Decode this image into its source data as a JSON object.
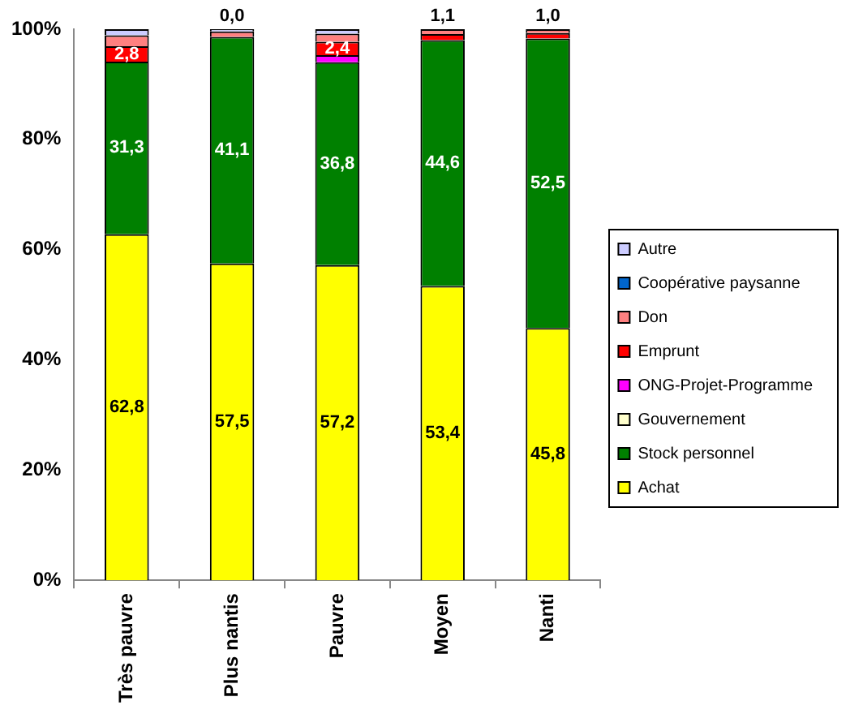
{
  "chart_data": {
    "type": "bar",
    "stacked": true,
    "categories": [
      "Très pauvre",
      "Plus nantis",
      "Pauvre",
      "Moyen",
      "Nanti"
    ],
    "series": [
      {
        "name": "Achat",
        "color": "#ffff00",
        "values": [
          62.8,
          57.5,
          57.2,
          53.4,
          45.8
        ],
        "value_labels": [
          "62,8",
          "57,5",
          "57,2",
          "53,4",
          "45,8"
        ]
      },
      {
        "name": "Stock personnel",
        "color": "#008000",
        "values": [
          31.3,
          41.1,
          36.8,
          44.6,
          52.5
        ],
        "value_labels": [
          "31,3",
          "41,1",
          "36,8",
          "44,6",
          "52,5"
        ]
      },
      {
        "name": "Gouvernement",
        "color": "#ffffcc",
        "values": [
          0,
          0,
          0,
          0,
          0
        ]
      },
      {
        "name": "ONG-Projet-Programme",
        "color": "#ff00ff",
        "values": [
          0,
          0,
          1.3,
          0,
          0
        ]
      },
      {
        "name": "Emprunt",
        "color": "#ff0000",
        "values": [
          2.8,
          0,
          2.4,
          1.1,
          1.0
        ],
        "value_labels": [
          "2,8",
          "0,0",
          "2,4",
          "1,1",
          "1,0"
        ]
      },
      {
        "name": "Don",
        "color": "#ff8080",
        "values": [
          2.0,
          1.0,
          1.5,
          0.9,
          0.7
        ]
      },
      {
        "name": "Coopérative paysanne",
        "color": "#0066cc",
        "values": [
          0,
          0,
          0,
          0,
          0
        ]
      },
      {
        "name": "Autre",
        "color": "#ccccff",
        "values": [
          1.1,
          0.4,
          0.8,
          0,
          0
        ]
      }
    ],
    "ylim": [
      0,
      100
    ],
    "yticks": [
      {
        "value": 0,
        "label": "0%"
      },
      {
        "value": 20,
        "label": "20%"
      },
      {
        "value": 40,
        "label": "40%"
      },
      {
        "value": 60,
        "label": "60%"
      },
      {
        "value": 80,
        "label": "80%"
      },
      {
        "value": 100,
        "label": "100%"
      }
    ],
    "grid": false,
    "legend": "right"
  }
}
